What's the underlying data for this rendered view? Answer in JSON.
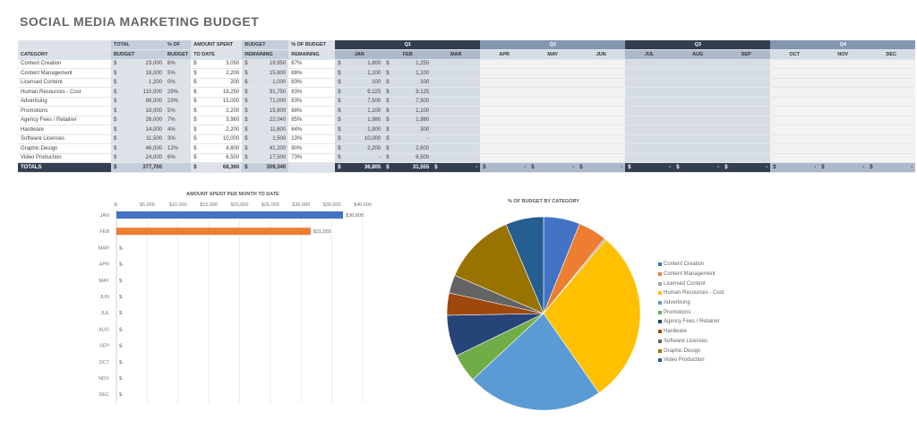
{
  "title": "SOCIAL MEDIA MARKETING BUDGET",
  "table": {
    "headers": {
      "category": "CATEGORY",
      "total_budget": [
        "TOTAL",
        "BUDGET"
      ],
      "pct_budget": [
        "% OF",
        "BUDGET"
      ],
      "amount_spent": [
        "AMOUNT SPENT",
        "TO DATE"
      ],
      "budget_remaining": [
        "BUDGET",
        "REMAINING"
      ],
      "pct_remaining": [
        "% OF BUDGET",
        "REMAINING"
      ],
      "quarters": [
        "Q1",
        "Q2",
        "Q3",
        "Q4"
      ],
      "months": [
        "JAN",
        "FEB",
        "MAR",
        "APR",
        "MAY",
        "JUN",
        "JUL",
        "AUG",
        "SEP",
        "OCT",
        "NOV",
        "DEC"
      ]
    },
    "currency": "$",
    "rows": [
      {
        "category": "Content Creation",
        "total": "23,000",
        "pct": "6%",
        "spent": "3,050",
        "remaining": "19,950",
        "pct_rem": "87%",
        "jan": "1,800",
        "feb": "1,250"
      },
      {
        "category": "Content Management",
        "total": "18,000",
        "pct": "5%",
        "spent": "2,200",
        "remaining": "15,800",
        "pct_rem": "88%",
        "jan": "1,100",
        "feb": "1,100"
      },
      {
        "category": "Licensed Content",
        "total": "1,200",
        "pct": "0%",
        "spent": "200",
        "remaining": "1,000",
        "pct_rem": "83%",
        "jan": "100",
        "feb": "100"
      },
      {
        "category": "Human Resources - Cost",
        "total": "110,000",
        "pct": "29%",
        "spent": "18,250",
        "remaining": "91,750",
        "pct_rem": "83%",
        "jan": "9,125",
        "feb": "9,125"
      },
      {
        "category": "Advertising",
        "total": "86,000",
        "pct": "23%",
        "spent": "15,000",
        "remaining": "71,000",
        "pct_rem": "83%",
        "jan": "7,500",
        "feb": "7,500"
      },
      {
        "category": "Promotions",
        "total": "18,000",
        "pct": "5%",
        "spent": "2,200",
        "remaining": "15,800",
        "pct_rem": "88%",
        "jan": "1,100",
        "feb": "1,100"
      },
      {
        "category": "Agency Fees / Retainer",
        "total": "26,000",
        "pct": "7%",
        "spent": "3,960",
        "remaining": "22,040",
        "pct_rem": "85%",
        "jan": "1,980",
        "feb": "1,980"
      },
      {
        "category": "Hardware",
        "total": "14,000",
        "pct": "4%",
        "spent": "2,200",
        "remaining": "11,800",
        "pct_rem": "84%",
        "jan": "1,900",
        "feb": "300"
      },
      {
        "category": "Software Licenses",
        "total": "11,500",
        "pct": "3%",
        "spent": "10,000",
        "remaining": "1,500",
        "pct_rem": "13%",
        "jan": "10,000",
        "feb": "-"
      },
      {
        "category": "Graphic Design",
        "total": "46,000",
        "pct": "12%",
        "spent": "4,800",
        "remaining": "41,200",
        "pct_rem": "90%",
        "jan": "2,200",
        "feb": "2,600"
      },
      {
        "category": "Video Production",
        "total": "24,000",
        "pct": "6%",
        "spent": "6,500",
        "remaining": "17,500",
        "pct_rem": "73%",
        "jan": "-",
        "feb": "6,500"
      }
    ],
    "totals": {
      "label": "TOTALS",
      "total": "377,700",
      "spent": "68,360",
      "remaining": "309,340",
      "months": [
        "36,805",
        "31,555",
        "-",
        "-",
        "-",
        "-",
        "-",
        "-",
        "-",
        "-",
        "-",
        "-"
      ]
    }
  },
  "chart_data": [
    {
      "type": "bar",
      "orientation": "horizontal",
      "title": "AMOUNT SPENT PER MONTH TO DATE",
      "categories": [
        "JAN",
        "FEB",
        "MAR",
        "APR",
        "MAY",
        "JUN",
        "JUL",
        "AUG",
        "SEP",
        "OCT",
        "NOV",
        "DEC"
      ],
      "values": [
        36805,
        31555,
        0,
        0,
        0,
        0,
        0,
        0,
        0,
        0,
        0,
        0
      ],
      "data_labels": [
        "$36,805",
        "$31,555",
        "$-",
        "$-",
        "$-",
        "$-",
        "$-",
        "$-",
        "$-",
        "$-",
        "$-",
        "$-"
      ],
      "bar_colors": [
        "#4472c4",
        "#ed7d31"
      ],
      "x_ticks": [
        "$-",
        "$5,000",
        "$10,000",
        "$15,000",
        "$20,000",
        "$25,000",
        "$30,000",
        "$35,000",
        "$40,000"
      ],
      "xlim": [
        0,
        40000
      ],
      "grid": true
    },
    {
      "type": "pie",
      "title": "% OF BUDGET BY CATEGORY",
      "labels": [
        "Content Creation",
        "Content Management",
        "Licensed Content",
        "Human Resources - Cost",
        "Advertising",
        "Promotions",
        "Agency Fees / Retainer",
        "Hardware",
        "Software Licenses",
        "Graphic Design",
        "Video Production"
      ],
      "values": [
        23000,
        18000,
        1200,
        110000,
        86000,
        18000,
        26000,
        14000,
        11500,
        46000,
        24000
      ],
      "colors": [
        "#4472c4",
        "#ed7d31",
        "#a5a5a5",
        "#ffc000",
        "#5b9bd5",
        "#70ad47",
        "#264478",
        "#9e480e",
        "#636363",
        "#997300",
        "#255e91"
      ],
      "legend_position": "right"
    }
  ]
}
